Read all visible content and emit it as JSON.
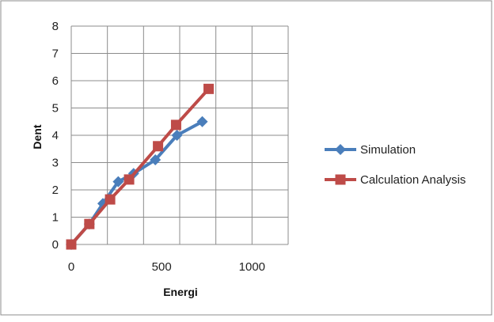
{
  "chart_data": {
    "type": "line",
    "title": "",
    "xlabel": "Energi",
    "ylabel": "Dent",
    "xlim": [
      0,
      1200
    ],
    "ylim": [
      0,
      8
    ],
    "x_ticks": [
      0,
      500,
      1000
    ],
    "x_tick_labels": [
      "0",
      "500",
      "1000"
    ],
    "x_grid_step": 200,
    "y_ticks": [
      0,
      1,
      2,
      3,
      4,
      5,
      6,
      7,
      8
    ],
    "y_tick_labels": [
      "0",
      "1",
      "2",
      "3",
      "4",
      "5",
      "6",
      "7",
      "8"
    ],
    "grid": true,
    "grid_vertical": true,
    "grid_horizontal": true,
    "legend_position": "right",
    "series": [
      {
        "name": "Simulation",
        "color": "#4a7ebb",
        "marker": "diamond",
        "x": [
          0,
          100,
          175,
          260,
          345,
          465,
          585,
          725
        ],
        "y": [
          0,
          0.75,
          1.5,
          2.3,
          2.6,
          3.1,
          4.0,
          4.5
        ]
      },
      {
        "name": "Calculation Analysis",
        "color": "#be4b48",
        "marker": "square",
        "x": [
          0,
          100,
          215,
          320,
          480,
          580,
          760
        ],
        "y": [
          0,
          0.75,
          1.65,
          2.38,
          3.6,
          4.38,
          5.7
        ]
      }
    ]
  }
}
